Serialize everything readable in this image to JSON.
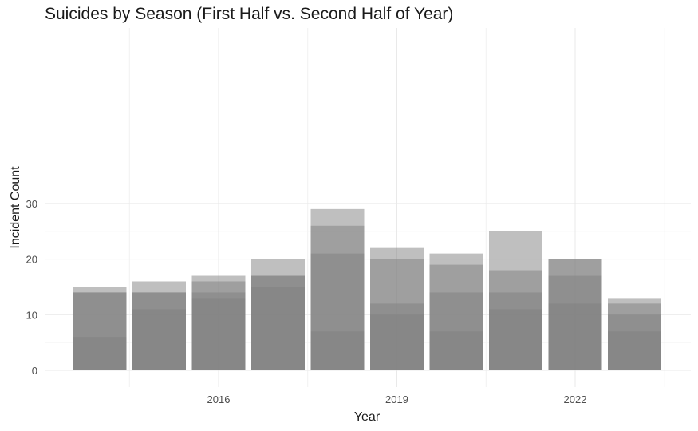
{
  "chart_data": {
    "type": "bar",
    "title": "Suicides by Season (First Half vs. Second Half of Year)",
    "xlabel": "Year",
    "ylabel": "Incident Count",
    "categories": [
      "2014",
      "2015",
      "2016",
      "2017",
      "2018",
      "2019",
      "2020",
      "2021",
      "2022",
      "2023"
    ],
    "x_ticks": [
      "2016",
      "2019",
      "2022"
    ],
    "y_ticks": [
      0,
      10,
      20,
      30
    ],
    "ylim": [
      0,
      30
    ],
    "grid": true,
    "bar_color": "#808080",
    "bar_opacity": 0.5,
    "series": [
      {
        "values": [
          6,
          11,
          13,
          15,
          7,
          10,
          7,
          11,
          12,
          7
        ]
      },
      {
        "values": [
          14,
          14,
          14,
          17,
          21,
          12,
          14,
          14,
          17,
          10
        ]
      },
      {
        "values": [
          14,
          14,
          16,
          17,
          26,
          20,
          19,
          18,
          20,
          12
        ]
      },
      {
        "values": [
          15,
          16,
          17,
          20,
          29,
          22,
          21,
          25,
          20,
          13
        ]
      }
    ]
  }
}
